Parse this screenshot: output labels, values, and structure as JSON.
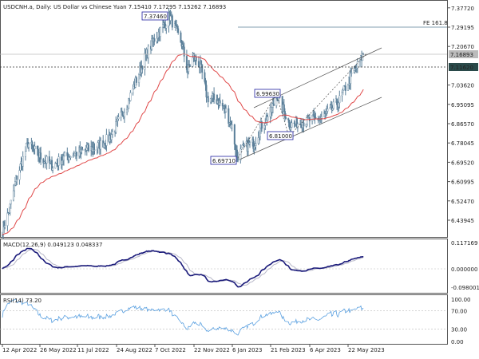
{
  "header": {
    "title": "USDCNH.a, Daily:  US Dollar vs Chinese Yuan  7.15410 7.17295 7.15262 7.16893"
  },
  "colors": {
    "bars": "#5a7f99",
    "ma": "#e04848",
    "macd": "#1a1a7a",
    "signal": "#b8b8c8",
    "rsi": "#5aa0e0",
    "annotation": "#2020a0"
  },
  "chart_data": [
    {
      "type": "bar",
      "title": "USDCNH.a, Daily",
      "ylim": [
        6.4,
        7.39
      ],
      "y_ticks": [
        "7.37720",
        "7.29195",
        "7.20670",
        "7.03620",
        "6.95095",
        "6.86570",
        "6.78045",
        "6.69520",
        "6.60995",
        "6.52470",
        "6.43945"
      ],
      "last_price": "7.16893",
      "current_line": "7.11620",
      "x_ticks": [
        "12 Apr 2022",
        "26 May 2022",
        "11 Jul 2022",
        "24 Aug 2022",
        "7 Oct 2022",
        "22 Nov 2022",
        "6 Jan 2023",
        "21 Feb 2023",
        "6 Apr 2023",
        "22 May 2023"
      ],
      "annotations": [
        {
          "label": "7.37460"
        },
        {
          "label": "6.99630"
        },
        {
          "label": "6.81000"
        },
        {
          "label": "6.69710"
        },
        {
          "label": "FE 161.8",
          "value": 7.29195
        }
      ],
      "close_approx": [
        [
          "2022-04-12",
          6.4
        ],
        [
          "2022-04-20",
          6.48
        ],
        [
          "2022-04-28",
          6.62
        ],
        [
          "2022-05-12",
          6.78
        ],
        [
          "2022-05-26",
          6.72
        ],
        [
          "2022-06-10",
          6.68
        ],
        [
          "2022-06-25",
          6.72
        ],
        [
          "2022-07-11",
          6.74
        ],
        [
          "2022-07-30",
          6.76
        ],
        [
          "2022-08-15",
          6.8
        ],
        [
          "2022-08-24",
          6.86
        ],
        [
          "2022-09-05",
          6.95
        ],
        [
          "2022-09-15",
          7.05
        ],
        [
          "2022-09-25",
          7.15
        ],
        [
          "2022-10-07",
          7.24
        ],
        [
          "2022-10-18",
          7.3
        ],
        [
          "2022-10-25",
          7.34
        ],
        [
          "2022-11-01",
          7.28
        ],
        [
          "2022-11-08",
          7.22
        ],
        [
          "2022-11-15",
          7.1
        ],
        [
          "2022-11-22",
          7.16
        ],
        [
          "2022-11-30",
          7.12
        ],
        [
          "2022-12-08",
          6.98
        ],
        [
          "2022-12-20",
          6.97
        ],
        [
          "2022-12-30",
          6.92
        ],
        [
          "2023-01-06",
          6.85
        ],
        [
          "2023-01-12",
          6.72
        ],
        [
          "2023-01-20",
          6.76
        ],
        [
          "2023-02-01",
          6.78
        ],
        [
          "2023-02-10",
          6.86
        ],
        [
          "2023-02-21",
          6.92
        ],
        [
          "2023-02-28",
          6.99
        ],
        [
          "2023-03-08",
          6.92
        ],
        [
          "2023-03-15",
          6.86
        ],
        [
          "2023-03-25",
          6.87
        ],
        [
          "2023-04-06",
          6.88
        ],
        [
          "2023-04-20",
          6.89
        ],
        [
          "2023-05-01",
          6.92
        ],
        [
          "2023-05-12",
          6.97
        ],
        [
          "2023-05-22",
          7.05
        ],
        [
          "2023-05-30",
          7.1
        ],
        [
          "2023-06-09",
          7.17
        ]
      ]
    },
    {
      "type": "line",
      "label": "MACD(12,26,9) 0.049123 0.048337",
      "y_ticks": [
        "0.117169",
        "0.000000",
        "-0.098001"
      ],
      "ylim": [
        -0.098001,
        0.117169
      ]
    },
    {
      "type": "line",
      "label": "RSI(14) 73.20",
      "y_ticks": [
        "100.00",
        "70.00",
        "30.00",
        "0.00"
      ],
      "ylim": [
        0,
        100
      ],
      "levels": [
        70,
        30
      ]
    }
  ]
}
